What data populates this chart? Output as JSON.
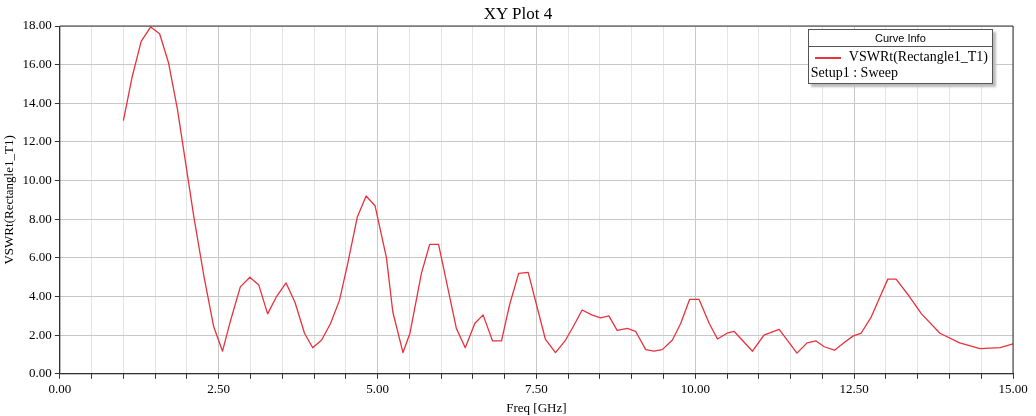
{
  "chart_data": {
    "type": "line",
    "title": "XY Plot 4",
    "xlabel": "Freq [GHz]",
    "ylabel": "VSWRt(Rectangle1_T1)",
    "legend_title": "Curve Info",
    "legend": "top right",
    "grid": true,
    "marker": "none",
    "line_style": "solid",
    "annotations": [
      "Setup1 : Sweep"
    ],
    "xlim": [
      0,
      15
    ],
    "ylim": [
      0,
      18
    ],
    "xticks": [
      {
        "value": 0,
        "label": "0.00"
      },
      {
        "value": 0.5,
        "label": null
      },
      {
        "value": 1,
        "label": null
      },
      {
        "value": 1.5,
        "label": null
      },
      {
        "value": 2,
        "label": null
      },
      {
        "value": 2.5,
        "label": "2.50"
      },
      {
        "value": 3,
        "label": null
      },
      {
        "value": 3.5,
        "label": null
      },
      {
        "value": 4,
        "label": null
      },
      {
        "value": 4.5,
        "label": null
      },
      {
        "value": 5,
        "label": "5.00"
      },
      {
        "value": 5.5,
        "label": null
      },
      {
        "value": 6,
        "label": null
      },
      {
        "value": 6.5,
        "label": null
      },
      {
        "value": 7,
        "label": null
      },
      {
        "value": 7.5,
        "label": "7.50"
      },
      {
        "value": 8,
        "label": null
      },
      {
        "value": 8.5,
        "label": null
      },
      {
        "value": 9,
        "label": null
      },
      {
        "value": 9.5,
        "label": null
      },
      {
        "value": 10,
        "label": "10.00"
      },
      {
        "value": 10.5,
        "label": null
      },
      {
        "value": 11,
        "label": null
      },
      {
        "value": 11.5,
        "label": null
      },
      {
        "value": 12,
        "label": null
      },
      {
        "value": 12.5,
        "label": "12.50"
      },
      {
        "value": 13,
        "label": null
      },
      {
        "value": 13.5,
        "label": null
      },
      {
        "value": 14,
        "label": null
      },
      {
        "value": 14.5,
        "label": null
      },
      {
        "value": 15,
        "label": "15.00"
      }
    ],
    "yticks": [
      {
        "value": 0,
        "label": "0.00"
      },
      {
        "value": 2,
        "label": "2.00"
      },
      {
        "value": 4,
        "label": "4.00"
      },
      {
        "value": 6,
        "label": "6.00"
      },
      {
        "value": 8,
        "label": "8.00"
      },
      {
        "value": 10,
        "label": "10.00"
      },
      {
        "value": 12,
        "label": "12.00"
      },
      {
        "value": 14,
        "label": "14.00"
      },
      {
        "value": 16,
        "label": "16.00"
      },
      {
        "value": 18,
        "label": "18.00"
      }
    ],
    "series": [
      {
        "name": "VSWRt(Rectangle1_T1)",
        "color": "#e8323c",
        "x": [
          1.0,
          1.14,
          1.28,
          1.43,
          1.57,
          1.71,
          1.85,
          1.98,
          2.11,
          2.27,
          2.42,
          2.56,
          2.69,
          2.84,
          2.99,
          3.13,
          3.27,
          3.41,
          3.56,
          3.7,
          3.85,
          3.98,
          4.12,
          4.26,
          4.4,
          4.53,
          4.68,
          4.82,
          4.96,
          5.14,
          5.24,
          5.4,
          5.51,
          5.69,
          5.82,
          5.96,
          6.24,
          6.38,
          6.53,
          6.66,
          6.81,
          6.95,
          7.08,
          7.22,
          7.37,
          7.64,
          7.8,
          7.95,
          8.08,
          8.22,
          8.37,
          8.51,
          8.64,
          8.77,
          8.93,
          9.06,
          9.22,
          9.35,
          9.48,
          9.64,
          9.77,
          9.91,
          10.06,
          10.22,
          10.35,
          10.5,
          10.61,
          10.9,
          11.08,
          11.32,
          11.6,
          11.76,
          11.9,
          12.03,
          12.19,
          12.35,
          12.48,
          12.61,
          12.77,
          12.93,
          13.03,
          13.16,
          13.37,
          13.56,
          13.85,
          14.16,
          14.48,
          14.8,
          15.0
        ],
        "values": [
          13.1,
          15.4,
          17.2,
          17.95,
          17.6,
          16.1,
          13.7,
          10.9,
          8.1,
          5.0,
          2.45,
          1.17,
          2.8,
          4.5,
          5.0,
          4.6,
          3.1,
          4.0,
          4.7,
          3.7,
          2.1,
          1.35,
          1.75,
          2.6,
          3.8,
          5.7,
          8.1,
          9.2,
          8.7,
          6.0,
          3.2,
          1.1,
          2.1,
          5.2,
          6.7,
          6.7,
          2.35,
          1.35,
          2.6,
          3.05,
          1.7,
          1.7,
          3.6,
          5.2,
          5.25,
          1.8,
          1.1,
          1.7,
          2.45,
          3.3,
          3.05,
          2.9,
          3.0,
          2.25,
          2.35,
          2.2,
          1.25,
          1.17,
          1.25,
          1.75,
          2.6,
          3.85,
          3.85,
          2.6,
          1.8,
          2.1,
          2.2,
          1.17,
          2.0,
          2.3,
          1.07,
          1.6,
          1.7,
          1.4,
          1.22,
          1.63,
          1.95,
          2.1,
          2.95,
          4.15,
          4.9,
          4.9,
          4.0,
          3.1,
          2.1,
          1.6,
          1.3,
          1.35,
          1.55
        ]
      }
    ]
  }
}
